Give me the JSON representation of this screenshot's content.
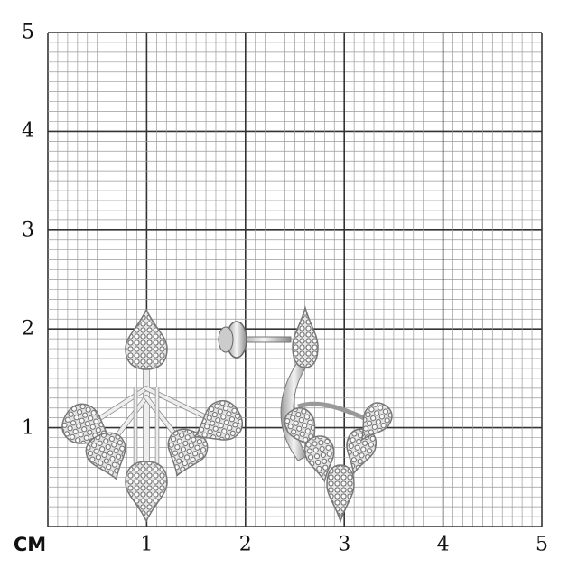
{
  "ruler": {
    "unit_label": "CM",
    "x_labels": [
      "1",
      "2",
      "3",
      "4",
      "5"
    ],
    "y_labels": [
      "1",
      "2",
      "3",
      "4",
      "5"
    ],
    "range_cm": [
      0,
      5
    ],
    "minor_divisions_per_cm": 10
  },
  "colors": {
    "major_grid": "#333333",
    "minor_grid": "#9a9a9a",
    "metal": "#d8d8d8",
    "stones": "#8a8a8a"
  },
  "product": {
    "type": "pavé drop earring jackets",
    "pieces": [
      "front earring",
      "side view with screw back"
    ]
  }
}
